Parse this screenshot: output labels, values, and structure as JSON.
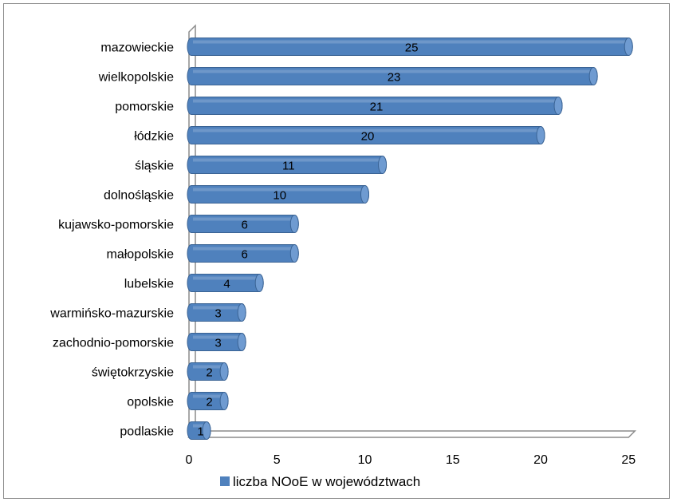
{
  "chart_data": {
    "type": "bar",
    "orientation": "horizontal",
    "categories": [
      "mazowieckie",
      "wielkopolskie",
      "pomorskie",
      "łódzkie",
      "śląskie",
      "dolnośląskie",
      "kujawsko-pomorskie",
      "małopolskie",
      "lubelskie",
      "warmińsko-mazurskie",
      "zachodnio-pomorskie",
      "świętokrzyskie",
      "opolskie",
      "podlaskie"
    ],
    "series": [
      {
        "name": "liczba NOoE w województwach",
        "values": [
          25,
          23,
          21,
          20,
          11,
          10,
          6,
          6,
          4,
          3,
          3,
          2,
          2,
          1
        ],
        "color": "#4f81bd"
      }
    ],
    "title": "",
    "xlabel": "",
    "ylabel": "",
    "xlim": [
      0,
      25
    ],
    "xticks": [
      "0",
      "5",
      "10",
      "15",
      "20",
      "25"
    ],
    "grid": false,
    "data_labels": true,
    "legend_position": "bottom"
  },
  "colors": {
    "bar_fill": "#4f81bd",
    "bar_cap": "#6f9bd1",
    "bar_edge": "#3a6394",
    "axis": "#8c8c8c"
  }
}
